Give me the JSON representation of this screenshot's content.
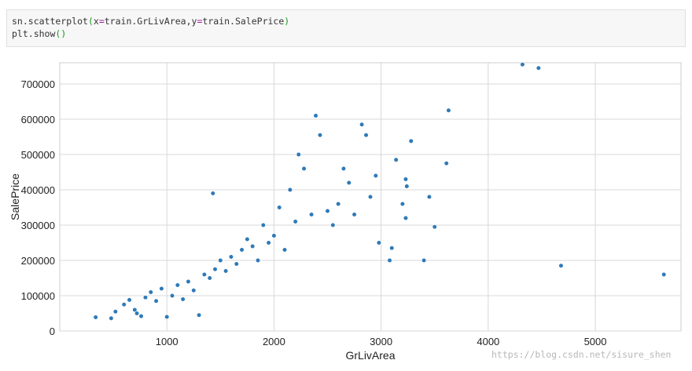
{
  "code_cell": {
    "line1": {
      "fn": "sn.scatterplot",
      "open": "(",
      "arg_x_key": "x",
      "eq1": "=",
      "arg_x_val": "train.GrLivArea,",
      "arg_y_key": "y",
      "eq2": "=",
      "arg_y_val": "train.SalePrice",
      "close": ")"
    },
    "line2": {
      "fn": "plt.show",
      "parens": "()"
    }
  },
  "watermark": "https://blog.csdn.net/sisure_shen",
  "colors": {
    "point": "#2f7ab8",
    "grid": "#d8d8d8",
    "axis_text": "#222222"
  },
  "chart_data": {
    "type": "scatter",
    "xlabel": "GrLivArea",
    "ylabel": "SalePrice",
    "xlim": [
      0,
      5800
    ],
    "ylim": [
      0,
      760000
    ],
    "xticks": [
      1000,
      2000,
      3000,
      4000,
      5000
    ],
    "yticks": [
      0,
      100000,
      200000,
      300000,
      400000,
      500000,
      600000,
      700000
    ],
    "xtick_labels": [
      "1000",
      "2000",
      "3000",
      "4000",
      "5000"
    ],
    "ytick_labels": [
      "0",
      "100000",
      "200000",
      "300000",
      "400000",
      "500000",
      "600000",
      "700000"
    ],
    "grid": true,
    "series": [
      {
        "marker": "circle",
        "points": [
          [
            335,
            39000
          ],
          [
            480,
            36000
          ],
          [
            520,
            55000
          ],
          [
            600,
            75000
          ],
          [
            650,
            88000
          ],
          [
            700,
            60000
          ],
          [
            720,
            50000
          ],
          [
            760,
            42000
          ],
          [
            800,
            95000
          ],
          [
            850,
            110000
          ],
          [
            900,
            85000
          ],
          [
            950,
            120000
          ],
          [
            1000,
            40000
          ],
          [
            1050,
            100000
          ],
          [
            1100,
            130000
          ],
          [
            1150,
            90000
          ],
          [
            1200,
            140000
          ],
          [
            1250,
            115000
          ],
          [
            1300,
            45000
          ],
          [
            1350,
            160000
          ],
          [
            1400,
            150000
          ],
          [
            1430,
            390000
          ],
          [
            1450,
            175000
          ],
          [
            1500,
            200000
          ],
          [
            1550,
            170000
          ],
          [
            1600,
            210000
          ],
          [
            1650,
            190000
          ],
          [
            1700,
            230000
          ],
          [
            1750,
            260000
          ],
          [
            1800,
            240000
          ],
          [
            1850,
            200000
          ],
          [
            1900,
            300000
          ],
          [
            1950,
            250000
          ],
          [
            2000,
            270000
          ],
          [
            2050,
            350000
          ],
          [
            2100,
            230000
          ],
          [
            2150,
            400000
          ],
          [
            2200,
            310000
          ],
          [
            2230,
            500000
          ],
          [
            2280,
            460000
          ],
          [
            2350,
            330000
          ],
          [
            2390,
            610000
          ],
          [
            2430,
            555000
          ],
          [
            2500,
            340000
          ],
          [
            2550,
            300000
          ],
          [
            2600,
            360000
          ],
          [
            2650,
            460000
          ],
          [
            2700,
            420000
          ],
          [
            2750,
            330000
          ],
          [
            2820,
            585000
          ],
          [
            2860,
            555000
          ],
          [
            2900,
            380000
          ],
          [
            2950,
            440000
          ],
          [
            2980,
            250000
          ],
          [
            3080,
            200000
          ],
          [
            3100,
            235000
          ],
          [
            3140,
            485000
          ],
          [
            3200,
            360000
          ],
          [
            3230,
            320000
          ],
          [
            3230,
            430000
          ],
          [
            3240,
            410000
          ],
          [
            3280,
            538000
          ],
          [
            3400,
            200000
          ],
          [
            3450,
            380000
          ],
          [
            3500,
            295000
          ],
          [
            3610,
            475000
          ],
          [
            3630,
            625000
          ],
          [
            4320,
            755000
          ],
          [
            4470,
            745000
          ],
          [
            4680,
            185000
          ],
          [
            5640,
            160000
          ]
        ]
      }
    ]
  }
}
